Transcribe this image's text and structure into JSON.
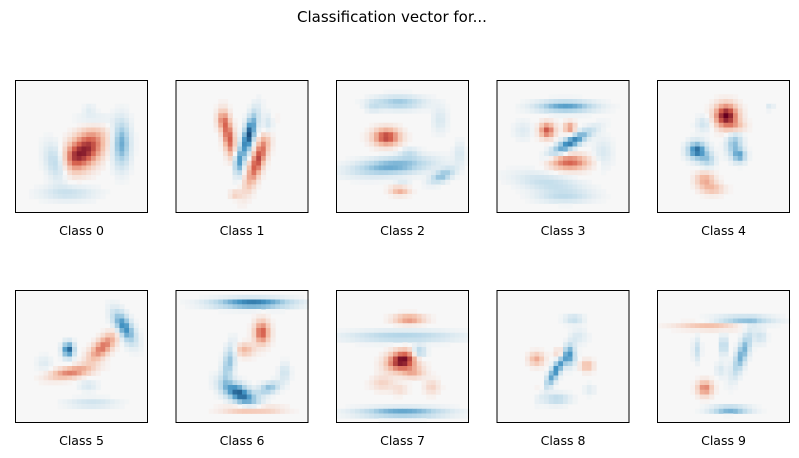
{
  "chart_data": {
    "type": "heatmap",
    "title": "Classification vector for...",
    "colormap": "RdBu",
    "grid": false,
    "panels": [
      {
        "label": "Class 0",
        "blobs": [
          {
            "x": 0.54,
            "y": 0.52,
            "sx": 0.075,
            "sy": 0.11,
            "a": 0.85,
            "rot": 35
          },
          {
            "x": 0.44,
            "y": 0.58,
            "sx": 0.05,
            "sy": 0.07,
            "a": 0.35,
            "rot": 0
          },
          {
            "x": 0.8,
            "y": 0.48,
            "sx": 0.045,
            "sy": 0.12,
            "a": -0.55,
            "rot": 0
          },
          {
            "x": 0.3,
            "y": 0.62,
            "sx": 0.05,
            "sy": 0.1,
            "a": -0.28,
            "rot": -15
          },
          {
            "x": 0.4,
            "y": 0.85,
            "sx": 0.14,
            "sy": 0.04,
            "a": -0.22,
            "rot": 0
          },
          {
            "x": 0.6,
            "y": 0.3,
            "sx": 0.09,
            "sy": 0.04,
            "a": -0.15,
            "rot": 0
          },
          {
            "x": 0.56,
            "y": 0.22,
            "sx": 0.03,
            "sy": 0.03,
            "a": -0.1,
            "rot": 0
          }
        ]
      },
      {
        "label": "Class 1",
        "blobs": [
          {
            "x": 0.55,
            "y": 0.42,
            "sx": 0.03,
            "sy": 0.12,
            "a": -0.9,
            "rot": 15
          },
          {
            "x": 0.4,
            "y": 0.43,
            "sx": 0.03,
            "sy": 0.11,
            "a": 0.7,
            "rot": -10
          },
          {
            "x": 0.62,
            "y": 0.6,
            "sx": 0.035,
            "sy": 0.15,
            "a": 0.75,
            "rot": 20
          },
          {
            "x": 0.47,
            "y": 0.62,
            "sx": 0.025,
            "sy": 0.07,
            "a": -0.55,
            "rot": 0
          },
          {
            "x": 0.35,
            "y": 0.3,
            "sx": 0.03,
            "sy": 0.05,
            "a": 0.35,
            "rot": 0
          },
          {
            "x": 0.7,
            "y": 0.35,
            "sx": 0.03,
            "sy": 0.06,
            "a": -0.3,
            "rot": 0
          },
          {
            "x": 0.45,
            "y": 0.86,
            "sx": 0.03,
            "sy": 0.02,
            "a": 0.25,
            "rot": 0
          }
        ]
      },
      {
        "label": "Class 2",
        "blobs": [
          {
            "x": 0.38,
            "y": 0.43,
            "sx": 0.07,
            "sy": 0.045,
            "a": 0.78,
            "rot": 0
          },
          {
            "x": 0.42,
            "y": 0.65,
            "sx": 0.2,
            "sy": 0.045,
            "a": -0.55,
            "rot": -5
          },
          {
            "x": 0.47,
            "y": 0.17,
            "sx": 0.13,
            "sy": 0.035,
            "a": -0.4,
            "rot": 0
          },
          {
            "x": 0.8,
            "y": 0.72,
            "sx": 0.07,
            "sy": 0.03,
            "a": -0.45,
            "rot": -25
          },
          {
            "x": 0.48,
            "y": 0.83,
            "sx": 0.05,
            "sy": 0.025,
            "a": 0.4,
            "rot": 0
          },
          {
            "x": 0.5,
            "y": 0.78,
            "sx": 0.04,
            "sy": 0.02,
            "a": -0.15,
            "rot": 0
          },
          {
            "x": 0.28,
            "y": 0.2,
            "sx": 0.04,
            "sy": 0.03,
            "a": -0.15,
            "rot": 0
          },
          {
            "x": 0.78,
            "y": 0.3,
            "sx": 0.04,
            "sy": 0.07,
            "a": -0.15,
            "rot": 0
          },
          {
            "x": 0.93,
            "y": 0.55,
            "sx": 0.03,
            "sy": 0.06,
            "a": -0.15,
            "rot": 0
          },
          {
            "x": 0.55,
            "y": 0.55,
            "sx": 0.05,
            "sy": 0.03,
            "a": -0.2,
            "rot": 0
          }
        ]
      },
      {
        "label": "Class 3",
        "blobs": [
          {
            "x": 0.52,
            "y": 0.2,
            "sx": 0.15,
            "sy": 0.03,
            "a": -0.6,
            "rot": 0
          },
          {
            "x": 0.55,
            "y": 0.62,
            "sx": 0.1,
            "sy": 0.04,
            "a": 0.65,
            "rot": 0
          },
          {
            "x": 0.38,
            "y": 0.38,
            "sx": 0.04,
            "sy": 0.04,
            "a": 0.7,
            "rot": 0
          },
          {
            "x": 0.55,
            "y": 0.36,
            "sx": 0.03,
            "sy": 0.03,
            "a": 0.5,
            "rot": 0
          },
          {
            "x": 0.56,
            "y": 0.47,
            "sx": 0.03,
            "sy": 0.12,
            "a": -0.75,
            "rot": 60
          },
          {
            "x": 0.4,
            "y": 0.78,
            "sx": 0.18,
            "sy": 0.05,
            "a": -0.25,
            "rot": 10
          },
          {
            "x": 0.5,
            "y": 0.88,
            "sx": 0.14,
            "sy": 0.03,
            "a": -0.22,
            "rot": 0
          },
          {
            "x": 0.2,
            "y": 0.38,
            "sx": 0.05,
            "sy": 0.05,
            "a": -0.12,
            "rot": 0
          },
          {
            "x": 0.8,
            "y": 0.55,
            "sx": 0.05,
            "sy": 0.08,
            "a": -0.15,
            "rot": 0
          }
        ]
      },
      {
        "label": "Class 4",
        "blobs": [
          {
            "x": 0.52,
            "y": 0.27,
            "sx": 0.06,
            "sy": 0.06,
            "a": 1.0,
            "rot": 0
          },
          {
            "x": 0.3,
            "y": 0.53,
            "sx": 0.05,
            "sy": 0.045,
            "a": -0.8,
            "rot": 0
          },
          {
            "x": 0.38,
            "y": 0.6,
            "sx": 0.04,
            "sy": 0.04,
            "a": -0.35,
            "rot": 0
          },
          {
            "x": 0.58,
            "y": 0.48,
            "sx": 0.04,
            "sy": 0.06,
            "a": -0.45,
            "rot": 10
          },
          {
            "x": 0.62,
            "y": 0.57,
            "sx": 0.035,
            "sy": 0.035,
            "a": -0.55,
            "rot": 0
          },
          {
            "x": 0.36,
            "y": 0.75,
            "sx": 0.05,
            "sy": 0.04,
            "a": 0.4,
            "rot": 0
          },
          {
            "x": 0.42,
            "y": 0.82,
            "sx": 0.06,
            "sy": 0.03,
            "a": 0.3,
            "rot": 0
          },
          {
            "x": 0.35,
            "y": 0.33,
            "sx": 0.04,
            "sy": 0.04,
            "a": -0.2,
            "rot": 0
          },
          {
            "x": 0.85,
            "y": 0.2,
            "sx": 0.02,
            "sy": 0.02,
            "a": -0.15,
            "rot": 0
          },
          {
            "x": 0.6,
            "y": 0.35,
            "sx": 0.05,
            "sy": 0.03,
            "a": 0.25,
            "rot": 0
          }
        ]
      },
      {
        "label": "Class 5",
        "blobs": [
          {
            "x": 0.82,
            "y": 0.28,
            "sx": 0.04,
            "sy": 0.09,
            "a": -0.75,
            "rot": -30
          },
          {
            "x": 0.42,
            "y": 0.62,
            "sx": 0.11,
            "sy": 0.03,
            "a": 0.55,
            "rot": -10
          },
          {
            "x": 0.66,
            "y": 0.43,
            "sx": 0.04,
            "sy": 0.1,
            "a": 0.6,
            "rot": 45
          },
          {
            "x": 0.4,
            "y": 0.45,
            "sx": 0.03,
            "sy": 0.04,
            "a": -0.85,
            "rot": 0
          },
          {
            "x": 0.58,
            "y": 0.85,
            "sx": 0.13,
            "sy": 0.025,
            "a": -0.2,
            "rot": 0
          },
          {
            "x": 0.22,
            "y": 0.55,
            "sx": 0.04,
            "sy": 0.04,
            "a": -0.12,
            "rot": 0
          },
          {
            "x": 0.55,
            "y": 0.72,
            "sx": 0.05,
            "sy": 0.03,
            "a": -0.15,
            "rot": 0
          }
        ]
      },
      {
        "label": "Class 6",
        "blobs": [
          {
            "x": 0.58,
            "y": 0.1,
            "sx": 0.2,
            "sy": 0.025,
            "a": -0.8,
            "rot": 0
          },
          {
            "x": 0.65,
            "y": 0.32,
            "sx": 0.04,
            "sy": 0.06,
            "a": 0.7,
            "rot": 0
          },
          {
            "x": 0.52,
            "y": 0.45,
            "sx": 0.05,
            "sy": 0.035,
            "a": 0.35,
            "rot": 0
          },
          {
            "x": 0.4,
            "y": 0.55,
            "sx": 0.03,
            "sy": 0.1,
            "a": -0.45,
            "rot": 10
          },
          {
            "x": 0.48,
            "y": 0.78,
            "sx": 0.1,
            "sy": 0.045,
            "a": -0.85,
            "rot": 30
          },
          {
            "x": 0.7,
            "y": 0.74,
            "sx": 0.06,
            "sy": 0.03,
            "a": -0.45,
            "rot": -20
          },
          {
            "x": 0.58,
            "y": 0.9,
            "sx": 0.14,
            "sy": 0.02,
            "a": 0.4,
            "rot": 0
          },
          {
            "x": 0.82,
            "y": 0.62,
            "sx": 0.03,
            "sy": 0.05,
            "a": -0.2,
            "rot": 0
          }
        ]
      },
      {
        "label": "Class 7",
        "blobs": [
          {
            "x": 0.5,
            "y": 0.53,
            "sx": 0.08,
            "sy": 0.05,
            "a": 1.0,
            "rot": -15
          },
          {
            "x": 0.55,
            "y": 0.22,
            "sx": 0.08,
            "sy": 0.025,
            "a": 0.5,
            "rot": 0
          },
          {
            "x": 0.5,
            "y": 0.35,
            "sx": 0.28,
            "sy": 0.03,
            "a": -0.35,
            "rot": 0
          },
          {
            "x": 0.62,
            "y": 0.47,
            "sx": 0.04,
            "sy": 0.035,
            "a": -0.5,
            "rot": 0
          },
          {
            "x": 0.5,
            "y": 0.92,
            "sx": 0.22,
            "sy": 0.025,
            "a": -0.6,
            "rot": 0
          },
          {
            "x": 0.35,
            "y": 0.7,
            "sx": 0.06,
            "sy": 0.04,
            "a": 0.2,
            "rot": 0
          },
          {
            "x": 0.48,
            "y": 0.75,
            "sx": 0.04,
            "sy": 0.03,
            "a": 0.15,
            "rot": 0
          },
          {
            "x": 0.72,
            "y": 0.73,
            "sx": 0.04,
            "sy": 0.04,
            "a": 0.2,
            "rot": 0
          },
          {
            "x": 0.58,
            "y": 0.62,
            "sx": 0.06,
            "sy": 0.03,
            "a": 0.35,
            "rot": 0
          }
        ]
      },
      {
        "label": "Class 8",
        "blobs": [
          {
            "x": 0.45,
            "y": 0.6,
            "sx": 0.025,
            "sy": 0.12,
            "a": -0.7,
            "rot": 30
          },
          {
            "x": 0.55,
            "y": 0.5,
            "sx": 0.03,
            "sy": 0.05,
            "a": -0.55,
            "rot": 0
          },
          {
            "x": 0.3,
            "y": 0.52,
            "sx": 0.04,
            "sy": 0.035,
            "a": 0.4,
            "rot": 0
          },
          {
            "x": 0.48,
            "y": 0.48,
            "sx": 0.03,
            "sy": 0.03,
            "a": 0.3,
            "rot": 0
          },
          {
            "x": 0.68,
            "y": 0.57,
            "sx": 0.035,
            "sy": 0.03,
            "a": 0.35,
            "rot": 0
          },
          {
            "x": 0.58,
            "y": 0.22,
            "sx": 0.05,
            "sy": 0.025,
            "a": -0.25,
            "rot": 0
          },
          {
            "x": 0.45,
            "y": 0.82,
            "sx": 0.07,
            "sy": 0.03,
            "a": -0.3,
            "rot": 0
          },
          {
            "x": 0.35,
            "y": 0.75,
            "sx": 0.03,
            "sy": 0.04,
            "a": 0.15,
            "rot": 0
          },
          {
            "x": 0.62,
            "y": 0.35,
            "sx": 0.05,
            "sy": 0.04,
            "a": -0.12,
            "rot": 0
          },
          {
            "x": 0.7,
            "y": 0.75,
            "sx": 0.03,
            "sy": 0.03,
            "a": -0.12,
            "rot": 0
          }
        ]
      },
      {
        "label": "Class 9",
        "blobs": [
          {
            "x": 0.65,
            "y": 0.23,
            "sx": 0.15,
            "sy": 0.025,
            "a": -0.45,
            "rot": 0
          },
          {
            "x": 0.42,
            "y": 0.27,
            "sx": 0.18,
            "sy": 0.02,
            "a": 0.35,
            "rot": 0
          },
          {
            "x": 0.64,
            "y": 0.48,
            "sx": 0.03,
            "sy": 0.12,
            "a": -0.55,
            "rot": 20
          },
          {
            "x": 0.5,
            "y": 0.42,
            "sx": 0.02,
            "sy": 0.05,
            "a": -0.35,
            "rot": 0
          },
          {
            "x": 0.3,
            "y": 0.45,
            "sx": 0.02,
            "sy": 0.06,
            "a": -0.25,
            "rot": 0
          },
          {
            "x": 0.36,
            "y": 0.74,
            "sx": 0.04,
            "sy": 0.04,
            "a": 0.55,
            "rot": 0
          },
          {
            "x": 0.55,
            "y": 0.9,
            "sx": 0.1,
            "sy": 0.018,
            "a": -0.6,
            "rot": 0
          },
          {
            "x": 0.78,
            "y": 0.35,
            "sx": 0.03,
            "sy": 0.04,
            "a": -0.2,
            "rot": 0
          },
          {
            "x": 0.48,
            "y": 0.6,
            "sx": 0.03,
            "sy": 0.04,
            "a": -0.15,
            "rot": 0
          }
        ]
      }
    ]
  }
}
